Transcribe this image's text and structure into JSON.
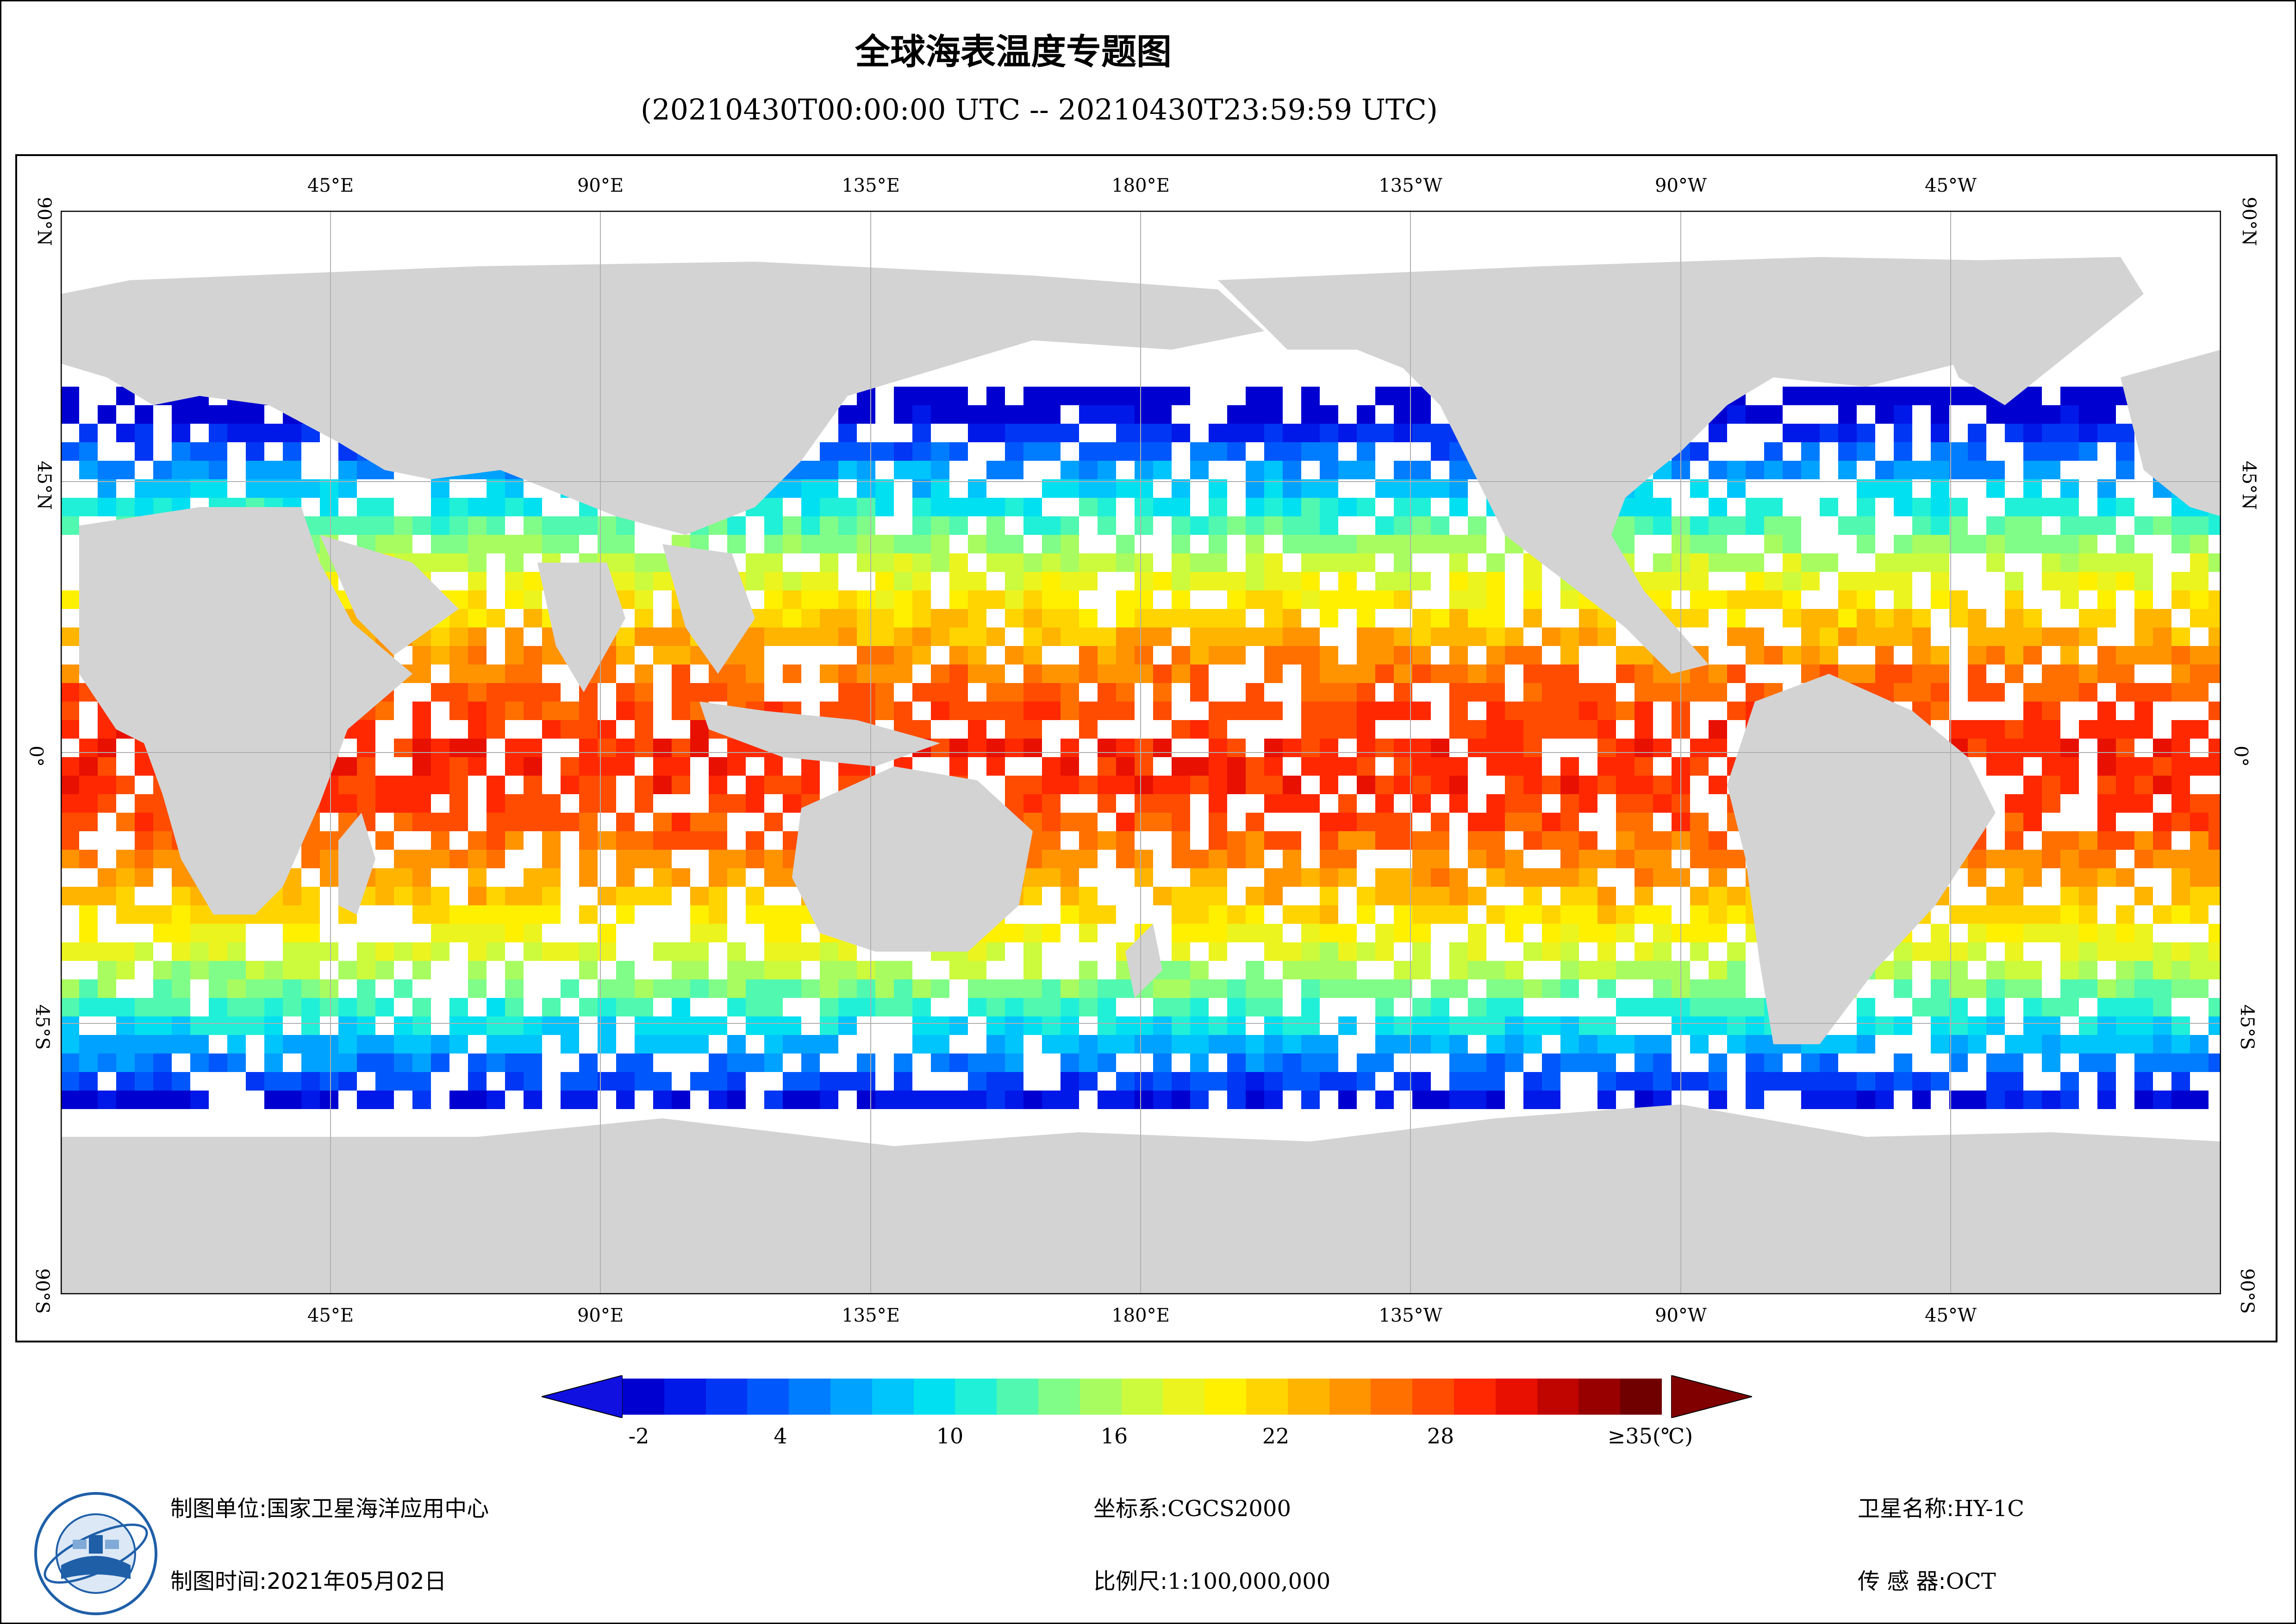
{
  "title": "全球海表温度专题图",
  "subtitle": "(20210430T00:00:00 UTC -- 20210430T23:59:59 UTC)",
  "graticule": {
    "lon_top": [
      "45°E",
      "90°E",
      "135°E",
      "180°E",
      "135°W",
      "90°W",
      "45°W"
    ],
    "lon_bottom": [
      "45°E",
      "90°E",
      "135°E",
      "180°E",
      "135°W",
      "90°W",
      "45°W"
    ],
    "lat_left": [
      "90°N",
      "45°N",
      "0°",
      "45°S",
      "90°S"
    ],
    "lat_right": [
      "90°N",
      "45°N",
      "0°",
      "45°S",
      "90°S"
    ]
  },
  "legend": {
    "ticks": [
      "-2",
      "4",
      "10",
      "16",
      "22",
      "28",
      "≥35(℃)"
    ],
    "colors": [
      "#0000d0",
      "#0018e8",
      "#0036f4",
      "#0058fc",
      "#007cff",
      "#00a2ff",
      "#00c4fc",
      "#00e0f0",
      "#20f0d8",
      "#50f8b0",
      "#80fc88",
      "#a8fc60",
      "#ccfa3c",
      "#ecf420",
      "#fff000",
      "#ffd400",
      "#ffb400",
      "#ff9400",
      "#ff7000",
      "#ff4c00",
      "#ff2800",
      "#e81000",
      "#c00400",
      "#980000",
      "#700000"
    ],
    "land_color": "#d3d3d3"
  },
  "footer": {
    "unit_label": "制图单位:",
    "unit_value": "国家卫星海洋应用中心",
    "time_label": "制图时间:",
    "time_value": "2021年05月02日",
    "crs_label": "坐标系:",
    "crs_value": "CGCS2000",
    "scale_label": "比例尺:",
    "scale_value": "1:100,000,000",
    "sat_label": "卫星名称:",
    "sat_value": "HY-1C",
    "sensor_label": "传 感 器:",
    "sensor_value": "OCT"
  }
}
